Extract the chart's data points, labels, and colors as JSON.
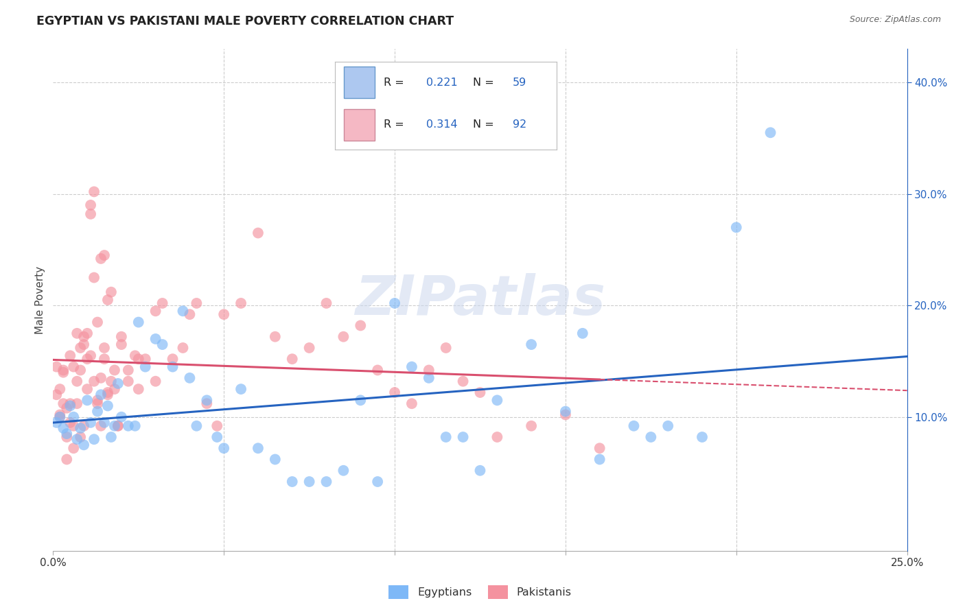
{
  "title": "EGYPTIAN VS PAKISTANI MALE POVERTY CORRELATION CHART",
  "source": "Source: ZipAtlas.com",
  "ylabel": "Male Poverty",
  "xlim": [
    0.0,
    0.25
  ],
  "ylim": [
    -0.02,
    0.43
  ],
  "watermark": "ZIPatlas",
  "egyptians_color": "#7eb8f7",
  "pakistanis_color": "#f4929f",
  "egyptians_line_color": "#2563c0",
  "pakistanis_line_color": "#d94f6e",
  "egyptians_x": [
    0.001,
    0.002,
    0.003,
    0.004,
    0.005,
    0.006,
    0.007,
    0.008,
    0.009,
    0.01,
    0.011,
    0.012,
    0.013,
    0.014,
    0.015,
    0.016,
    0.017,
    0.018,
    0.019,
    0.02,
    0.022,
    0.024,
    0.025,
    0.027,
    0.03,
    0.032,
    0.035,
    0.038,
    0.04,
    0.042,
    0.045,
    0.048,
    0.05,
    0.055,
    0.06,
    0.065,
    0.07,
    0.075,
    0.08,
    0.085,
    0.09,
    0.095,
    0.1,
    0.105,
    0.11,
    0.115,
    0.12,
    0.125,
    0.13,
    0.14,
    0.15,
    0.155,
    0.16,
    0.17,
    0.175,
    0.18,
    0.19,
    0.2,
    0.21
  ],
  "egyptians_y": [
    0.095,
    0.1,
    0.09,
    0.085,
    0.11,
    0.1,
    0.08,
    0.09,
    0.075,
    0.115,
    0.095,
    0.08,
    0.105,
    0.12,
    0.095,
    0.11,
    0.082,
    0.092,
    0.13,
    0.1,
    0.092,
    0.092,
    0.185,
    0.145,
    0.17,
    0.165,
    0.145,
    0.195,
    0.135,
    0.092,
    0.115,
    0.082,
    0.072,
    0.125,
    0.072,
    0.062,
    0.042,
    0.042,
    0.042,
    0.052,
    0.115,
    0.042,
    0.202,
    0.145,
    0.135,
    0.082,
    0.082,
    0.052,
    0.115,
    0.165,
    0.105,
    0.175,
    0.062,
    0.092,
    0.082,
    0.092,
    0.082,
    0.27,
    0.355
  ],
  "pakistanis_x": [
    0.001,
    0.001,
    0.002,
    0.002,
    0.003,
    0.003,
    0.004,
    0.004,
    0.005,
    0.005,
    0.006,
    0.006,
    0.007,
    0.007,
    0.008,
    0.008,
    0.009,
    0.009,
    0.01,
    0.01,
    0.011,
    0.011,
    0.012,
    0.012,
    0.013,
    0.013,
    0.014,
    0.014,
    0.015,
    0.015,
    0.016,
    0.016,
    0.017,
    0.018,
    0.019,
    0.02,
    0.022,
    0.024,
    0.025,
    0.027,
    0.03,
    0.032,
    0.035,
    0.038,
    0.04,
    0.042,
    0.045,
    0.048,
    0.05,
    0.055,
    0.06,
    0.065,
    0.07,
    0.075,
    0.08,
    0.085,
    0.09,
    0.095,
    0.1,
    0.105,
    0.11,
    0.115,
    0.12,
    0.125,
    0.13,
    0.14,
    0.15,
    0.16,
    0.002,
    0.003,
    0.004,
    0.005,
    0.006,
    0.007,
    0.008,
    0.009,
    0.01,
    0.011,
    0.012,
    0.013,
    0.014,
    0.015,
    0.016,
    0.017,
    0.018,
    0.019,
    0.02,
    0.022,
    0.025,
    0.03
  ],
  "pakistanis_y": [
    0.12,
    0.145,
    0.125,
    0.1,
    0.112,
    0.14,
    0.108,
    0.082,
    0.095,
    0.155,
    0.145,
    0.092,
    0.112,
    0.175,
    0.142,
    0.082,
    0.165,
    0.092,
    0.125,
    0.175,
    0.29,
    0.155,
    0.225,
    0.132,
    0.185,
    0.115,
    0.242,
    0.135,
    0.245,
    0.162,
    0.205,
    0.12,
    0.212,
    0.125,
    0.092,
    0.165,
    0.132,
    0.155,
    0.125,
    0.152,
    0.195,
    0.202,
    0.152,
    0.162,
    0.192,
    0.202,
    0.112,
    0.092,
    0.192,
    0.202,
    0.265,
    0.172,
    0.152,
    0.162,
    0.202,
    0.172,
    0.182,
    0.142,
    0.122,
    0.112,
    0.142,
    0.162,
    0.132,
    0.122,
    0.082,
    0.092,
    0.102,
    0.072,
    0.102,
    0.142,
    0.062,
    0.112,
    0.072,
    0.132,
    0.162,
    0.172,
    0.152,
    0.282,
    0.302,
    0.112,
    0.092,
    0.152,
    0.122,
    0.132,
    0.142,
    0.092,
    0.172,
    0.142,
    0.152,
    0.132
  ]
}
